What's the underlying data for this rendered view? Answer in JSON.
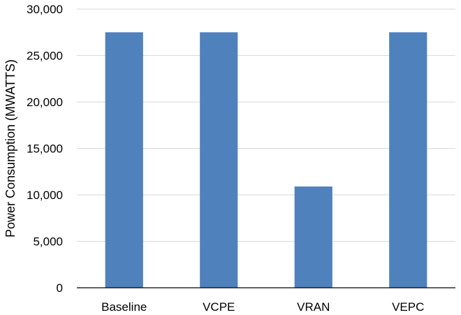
{
  "chart_data": {
    "type": "bar",
    "title": "",
    "xlabel": "",
    "ylabel": "Power Consumption (MWATTS)",
    "categories": [
      "Baseline",
      "VCPE",
      "VRAN",
      "VEPC"
    ],
    "values": [
      27500,
      27500,
      10900,
      27500
    ],
    "ylim": [
      0,
      30000
    ],
    "yticks": [
      "0",
      "5,000",
      "10,000",
      "15,000",
      "20,000",
      "25,000",
      "30,000"
    ],
    "grid": true,
    "legend": "none",
    "bar_color": "#4f81bd"
  }
}
